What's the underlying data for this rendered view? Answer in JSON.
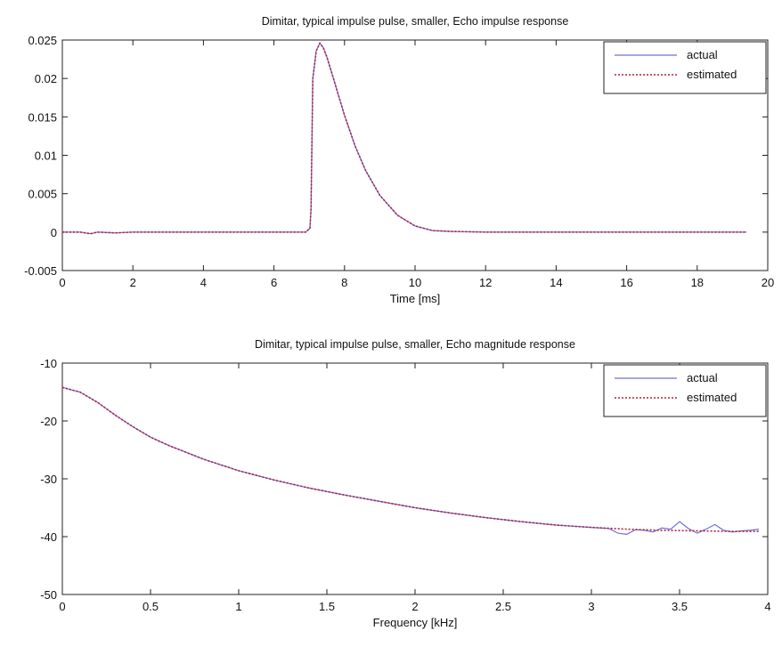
{
  "chart_data": [
    {
      "type": "line",
      "title": "Dimitar, typical impulse pulse, smaller, Echo impulse response",
      "xlabel": "Time [ms]",
      "ylabel": "",
      "xlim": [
        0,
        20
      ],
      "ylim": [
        -0.005,
        0.025
      ],
      "xticks": [
        0,
        2,
        4,
        6,
        8,
        10,
        12,
        14,
        16,
        18,
        20
      ],
      "xtick_labels": [
        "0",
        "2",
        "4",
        "6",
        "8",
        "10",
        "12",
        "14",
        "16",
        "18",
        "20"
      ],
      "yticks": [
        -0.005,
        0,
        0.005,
        0.01,
        0.015,
        0.02,
        0.025
      ],
      "ytick_labels": [
        "-0.005",
        "0",
        "0.005",
        "0.01",
        "0.015",
        "0.02",
        "0.025"
      ],
      "grid": false,
      "legend_position": "top-right",
      "series": [
        {
          "name": "actual",
          "color": "#6f6fd6",
          "style": "solid",
          "x": [
            0,
            0.5,
            0.8,
            1.0,
            1.5,
            2,
            3,
            4,
            5,
            6,
            6.9,
            7.02,
            7.05,
            7.1,
            7.2,
            7.3,
            7.4,
            7.5,
            7.7,
            8.0,
            8.3,
            8.6,
            9.0,
            9.5,
            10.0,
            10.5,
            11,
            12,
            14,
            16,
            18,
            19.4
          ],
          "y": [
            0,
            0,
            -0.0002,
            0,
            -0.0001,
            0,
            0,
            0,
            0,
            0,
            0,
            0.0005,
            0.003,
            0.02,
            0.0236,
            0.0246,
            0.024,
            0.0228,
            0.0198,
            0.0152,
            0.0112,
            0.008,
            0.0048,
            0.0022,
            0.0008,
            0.0002,
            0.0001,
            0,
            0,
            0,
            0,
            0
          ]
        },
        {
          "name": "estimated",
          "color": "#b0203a",
          "style": "dotted",
          "x": [
            0,
            0.5,
            0.8,
            1.0,
            1.5,
            2,
            3,
            4,
            5,
            6,
            6.9,
            7.02,
            7.05,
            7.1,
            7.2,
            7.3,
            7.4,
            7.5,
            7.7,
            8.0,
            8.3,
            8.6,
            9.0,
            9.5,
            10.0,
            10.5,
            11,
            12,
            14,
            16,
            18,
            19.4
          ],
          "y": [
            0,
            0,
            -0.0002,
            0,
            -0.0001,
            0,
            0,
            0,
            0,
            0,
            0,
            0.0005,
            0.003,
            0.02,
            0.0236,
            0.0246,
            0.024,
            0.0228,
            0.0198,
            0.0152,
            0.0112,
            0.008,
            0.0048,
            0.0022,
            0.0008,
            0.0002,
            0.0001,
            0,
            0,
            0,
            0,
            0
          ]
        }
      ]
    },
    {
      "type": "line",
      "title": "Dimitar, typical impulse pulse, smaller, Echo magnitude response",
      "xlabel": "Frequency [kHz]",
      "ylabel": "",
      "xlim": [
        0,
        4
      ],
      "ylim": [
        -50,
        -10
      ],
      "xticks": [
        0,
        0.5,
        1,
        1.5,
        2,
        2.5,
        3,
        3.5,
        4
      ],
      "xtick_labels": [
        "0",
        "0.5",
        "1",
        "1.5",
        "2",
        "2.5",
        "3",
        "3.5",
        "4"
      ],
      "yticks": [
        -50,
        -40,
        -30,
        -20,
        -10
      ],
      "ytick_labels": [
        "-50",
        "-40",
        "-30",
        "-20",
        "-10"
      ],
      "grid": false,
      "legend_position": "top-right",
      "series": [
        {
          "name": "actual",
          "color": "#6f6fd6",
          "style": "solid",
          "x": [
            0,
            0.1,
            0.2,
            0.3,
            0.4,
            0.5,
            0.6,
            0.8,
            1.0,
            1.2,
            1.4,
            1.6,
            1.8,
            2.0,
            2.2,
            2.4,
            2.6,
            2.8,
            3.0,
            3.1,
            3.15,
            3.2,
            3.25,
            3.3,
            3.35,
            3.4,
            3.45,
            3.5,
            3.55,
            3.6,
            3.65,
            3.7,
            3.75,
            3.8,
            3.85,
            3.9,
            3.95
          ],
          "y": [
            -14.2,
            -15.0,
            -16.8,
            -19.0,
            -21.0,
            -22.8,
            -24.2,
            -26.6,
            -28.6,
            -30.2,
            -31.6,
            -32.8,
            -33.9,
            -35.0,
            -35.9,
            -36.7,
            -37.4,
            -38.0,
            -38.4,
            -38.6,
            -39.4,
            -39.6,
            -38.8,
            -38.9,
            -39.2,
            -38.5,
            -38.7,
            -37.4,
            -38.6,
            -39.4,
            -38.7,
            -37.9,
            -38.9,
            -39.2,
            -39.0,
            -38.9,
            -38.7
          ]
        },
        {
          "name": "estimated",
          "color": "#b0203a",
          "style": "dotted",
          "x": [
            0,
            0.1,
            0.2,
            0.3,
            0.4,
            0.5,
            0.6,
            0.8,
            1.0,
            1.2,
            1.4,
            1.6,
            1.8,
            2.0,
            2.2,
            2.4,
            2.6,
            2.8,
            3.0,
            3.2,
            3.4,
            3.6,
            3.8,
            3.95
          ],
          "y": [
            -14.2,
            -15.0,
            -16.8,
            -19.0,
            -21.0,
            -22.8,
            -24.2,
            -26.6,
            -28.6,
            -30.2,
            -31.6,
            -32.8,
            -33.9,
            -35.0,
            -35.9,
            -36.7,
            -37.4,
            -38.0,
            -38.4,
            -38.7,
            -38.9,
            -39.0,
            -39.1,
            -39.1
          ]
        }
      ]
    }
  ]
}
